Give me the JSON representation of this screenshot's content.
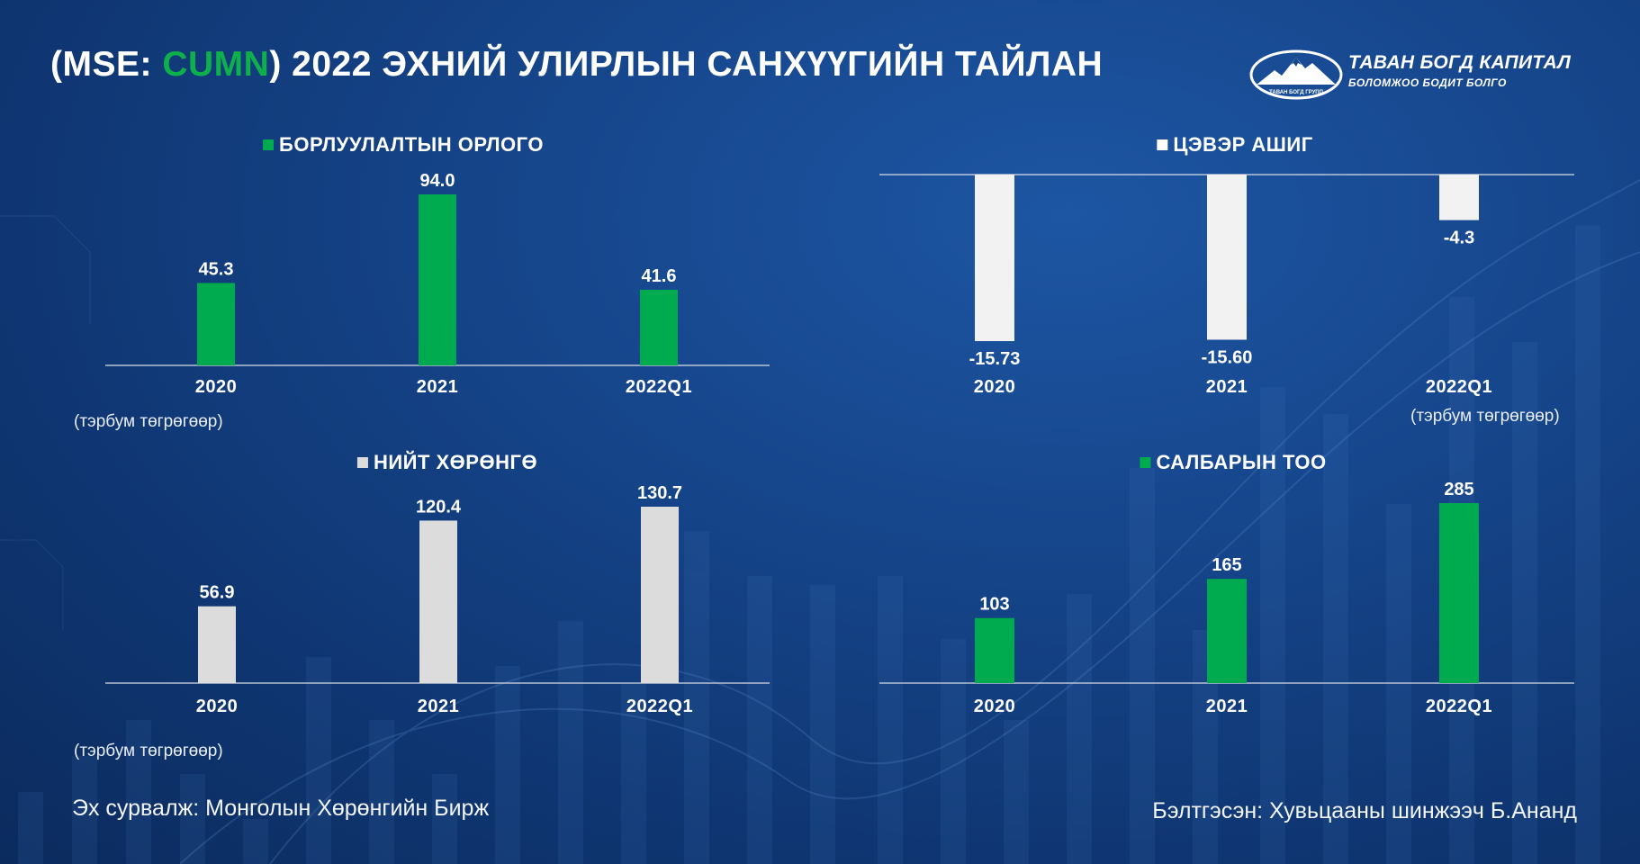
{
  "header": {
    "title_prefix": "(MSE: ",
    "title_ticker": "CUMN",
    "title_suffix": ") 2022 ЭХНИЙ УЛИРЛЫН САНХҮҮГИЙН ТАЙЛАН"
  },
  "logo": {
    "name": "ТАВАН БОГД КАПИТАЛ",
    "tagline": "БОЛОМЖОО БОДИТ БОЛГО",
    "emblem_text": "ТАВАН БОГД ГРУПП"
  },
  "colors": {
    "accent_green": "#00aa4f",
    "bar_white": "#f2f2f2",
    "bar_grey": "#dcdcdc"
  },
  "footer": {
    "source": "Эх сурвалж: Монголын Хөрөнгийн Бирж",
    "author": "Бэлтгэсэн: Хувьцааны шинжээч Б.Ананд"
  },
  "units": {
    "revenue": "(тэрбум төгрөгөөр)",
    "profit": "(тэрбум төгрөгөөр)",
    "assets": "(тэрбум төгрөгөөр)"
  },
  "chart_data": [
    {
      "id": "revenue",
      "type": "bar",
      "title": "БОРЛУУЛАЛТЫН ОРЛОГО",
      "categories": [
        "2020",
        "2021",
        "2022Q1"
      ],
      "values": [
        45.3,
        94.0,
        41.6
      ],
      "labels": [
        "45.3",
        "94.0",
        "41.6"
      ],
      "color": "#00aa4f",
      "legend_color": "#00aa4f"
    },
    {
      "id": "profit",
      "type": "bar",
      "title": "ЦЭВЭР АШИГ",
      "categories": [
        "2020",
        "2021",
        "2022Q1"
      ],
      "values": [
        -15.73,
        -15.6,
        -4.3
      ],
      "labels": [
        "-15.73",
        "-15.60",
        "-4.3"
      ],
      "color": "#f2f2f2",
      "legend_color": "#ffffff"
    },
    {
      "id": "assets",
      "type": "bar",
      "title": "НИЙТ ХӨРӨНГӨ",
      "categories": [
        "2020",
        "2021",
        "2022Q1"
      ],
      "values": [
        56.9,
        120.4,
        130.7
      ],
      "labels": [
        "56.9",
        "120.4",
        "130.7"
      ],
      "color": "#dcdcdc",
      "legend_color": "#dcdcdc"
    },
    {
      "id": "branches",
      "type": "bar",
      "title": "САЛБАРЫН ТОО",
      "categories": [
        "2020",
        "2021",
        "2022Q1"
      ],
      "values": [
        103,
        165,
        285
      ],
      "labels": [
        "103",
        "165",
        "285"
      ],
      "color": "#00aa4f",
      "legend_color": "#00aa4f"
    }
  ]
}
